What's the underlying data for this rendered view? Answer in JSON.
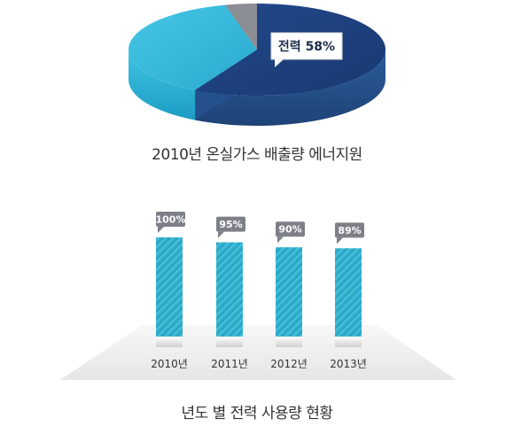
{
  "chart_data": [
    {
      "type": "pie",
      "title": "2010년 온실가스 배출량 에너지원",
      "slices": [
        {
          "label": "전력",
          "value": 58,
          "color": "#1d3f7e"
        },
        {
          "label": "",
          "value": 38,
          "color": "#38b7d8"
        },
        {
          "label": "",
          "value": 4,
          "color": "#8a8d93"
        }
      ],
      "callout": {
        "label": "전력",
        "value_text": "58%"
      }
    },
    {
      "type": "bar",
      "title": "년도 별 전력 사용량 현황",
      "categories": [
        "2010년",
        "2011년",
        "2012년",
        "2013년"
      ],
      "values": [
        100,
        95,
        90,
        89
      ],
      "value_labels": [
        "100%",
        "95%",
        "90%",
        "89%"
      ],
      "ylim": [
        0,
        100
      ],
      "bar_color": "#2eb0cc",
      "label_color": "#7d8088"
    }
  ]
}
